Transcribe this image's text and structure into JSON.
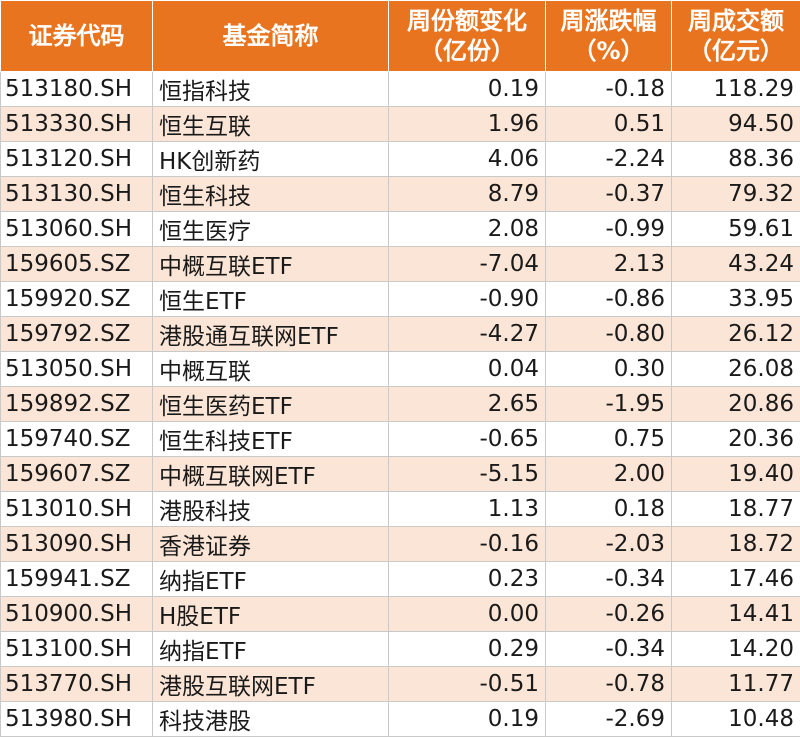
{
  "colors": {
    "header_bg": "#e9741f",
    "header_text": "#ffffff",
    "stripe": "#fbe5d6"
  },
  "table": {
    "headers": [
      {
        "line1": "证券代码",
        "line2": ""
      },
      {
        "line1": "基金简称",
        "line2": ""
      },
      {
        "line1": "周份额变化",
        "line2": "（亿份）"
      },
      {
        "line1": "周涨跌幅",
        "line2": "（%）"
      },
      {
        "line1": "周成交额",
        "line2": "（亿元）"
      }
    ],
    "rows": [
      [
        "513180.SH",
        "恒指科技",
        "0.19",
        "-0.18",
        "118.29"
      ],
      [
        "513330.SH",
        "恒生互联",
        "1.96",
        "0.51",
        "94.50"
      ],
      [
        "513120.SH",
        "HK创新药",
        "4.06",
        "-2.24",
        "88.36"
      ],
      [
        "513130.SH",
        "恒生科技",
        "8.79",
        "-0.37",
        "79.32"
      ],
      [
        "513060.SH",
        "恒生医疗",
        "2.08",
        "-0.99",
        "59.61"
      ],
      [
        "159605.SZ",
        "中概互联ETF",
        "-7.04",
        "2.13",
        "43.24"
      ],
      [
        "159920.SZ",
        "恒生ETF",
        "-0.90",
        "-0.86",
        "33.95"
      ],
      [
        "159792.SZ",
        "港股通互联网ETF",
        "-4.27",
        "-0.80",
        "26.12"
      ],
      [
        "513050.SH",
        "中概互联",
        "0.04",
        "0.30",
        "26.08"
      ],
      [
        "159892.SZ",
        "恒生医药ETF",
        "2.65",
        "-1.95",
        "20.86"
      ],
      [
        "159740.SZ",
        "恒生科技ETF",
        "-0.65",
        "0.75",
        "20.36"
      ],
      [
        "159607.SZ",
        "中概互联网ETF",
        "-5.15",
        "2.00",
        "19.40"
      ],
      [
        "513010.SH",
        "港股科技",
        "1.13",
        "0.18",
        "18.77"
      ],
      [
        "513090.SH",
        "香港证券",
        "-0.16",
        "-2.03",
        "18.72"
      ],
      [
        "159941.SZ",
        "纳指ETF",
        "0.23",
        "-0.34",
        "17.46"
      ],
      [
        "510900.SH",
        "H股ETF",
        "0.00",
        "-0.26",
        "14.41"
      ],
      [
        "513100.SH",
        "纳指ETF",
        "0.29",
        "-0.34",
        "14.20"
      ],
      [
        "513770.SH",
        "港股互联网ETF",
        "-0.51",
        "-0.78",
        "11.77"
      ],
      [
        "513980.SH",
        "科技港股",
        "0.19",
        "-2.69",
        "10.48"
      ]
    ]
  }
}
